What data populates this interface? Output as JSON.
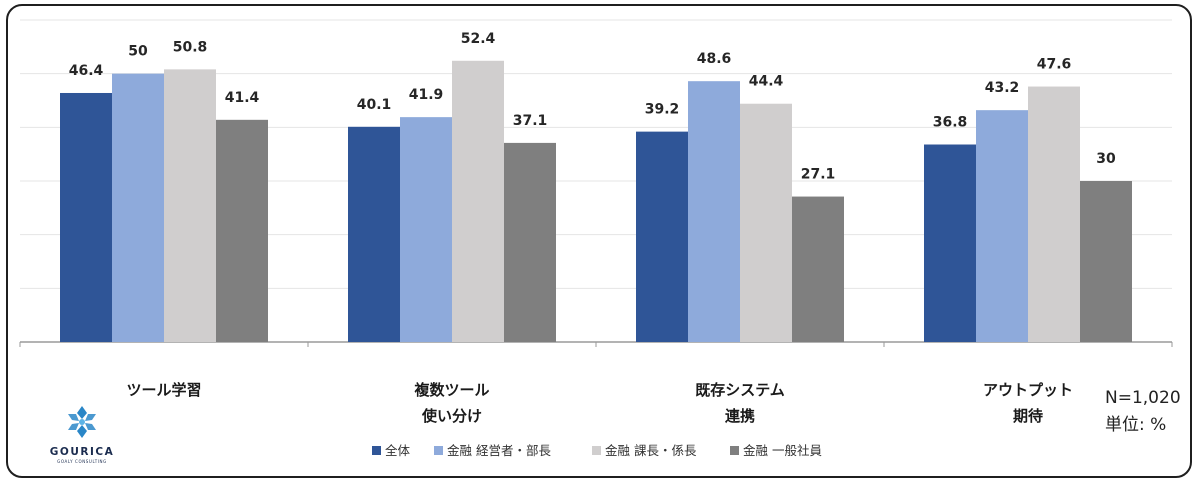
{
  "chart_data": {
    "type": "bar",
    "categories": [
      [
        "ツール学習"
      ],
      [
        "複数ツール",
        "使い分け"
      ],
      [
        "既存システム",
        "連携"
      ],
      [
        "アウトプット",
        "期待"
      ]
    ],
    "series": [
      {
        "name": "全体",
        "color": "#2f5597",
        "values": [
          46.4,
          40.1,
          39.2,
          36.8
        ]
      },
      {
        "name": "金融 経営者・部長",
        "color": "#8eaadb",
        "values": [
          50,
          41.9,
          48.6,
          43.2
        ]
      },
      {
        "name": "金融 課長・係長",
        "color": "#d0cece",
        "values": [
          50.8,
          52.4,
          44.4,
          47.6
        ]
      },
      {
        "name": "金融 一般社員",
        "color": "#7f7f7f",
        "values": [
          41.4,
          37.1,
          27.1,
          30
        ]
      }
    ],
    "ylim": [
      0,
      60
    ],
    "grid": true,
    "legend": "bottom"
  },
  "notes": {
    "sample": "N=1,020",
    "unit": "単位: %"
  },
  "logo": {
    "name": "GOURICA",
    "tagline": "GOALY CONSULTING",
    "brand_color": "#1e7fc4"
  }
}
